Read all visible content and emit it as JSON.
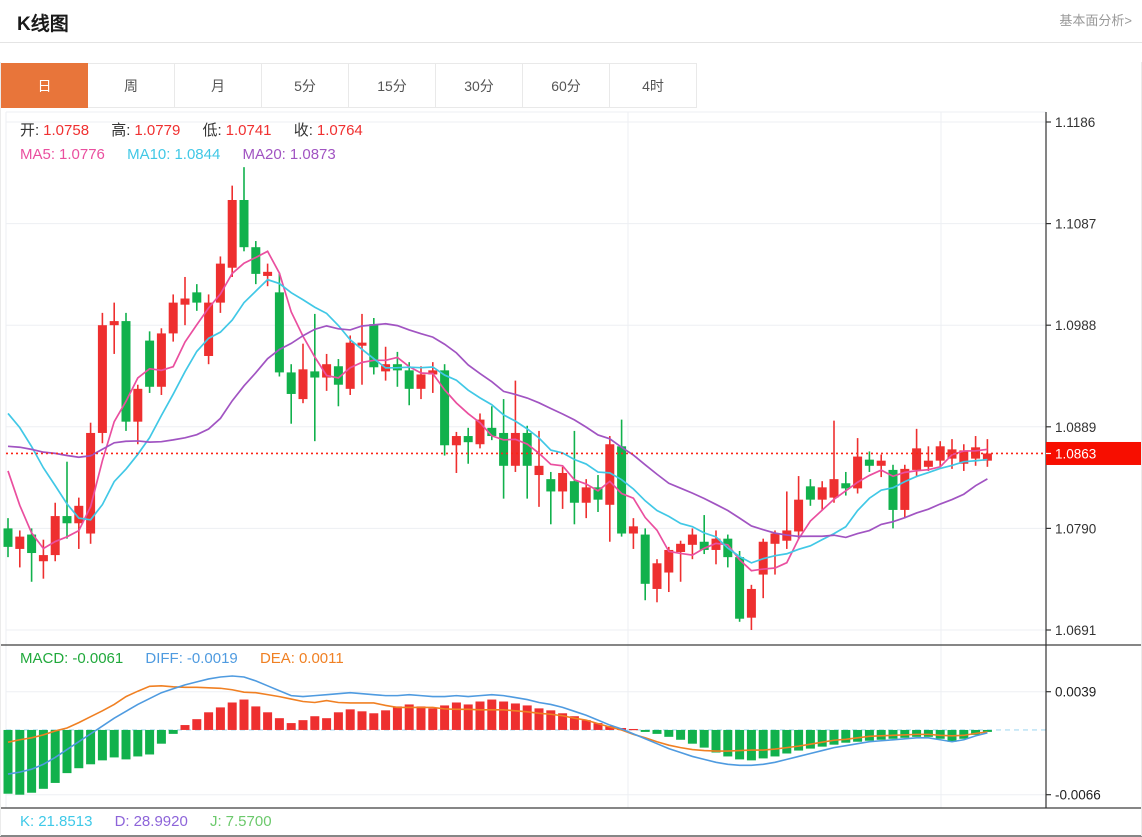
{
  "header": {
    "title": "K线图",
    "link": "基本面分析>"
  },
  "tabs": {
    "items": [
      "日",
      "周",
      "月",
      "5分",
      "15分",
      "30分",
      "60分",
      "4时"
    ],
    "active_index": 0
  },
  "legend": {
    "ohlc": {
      "open_l": "开:",
      "open_v": "1.0758",
      "high_l": "高:",
      "high_v": "1.0779",
      "low_l": "低:",
      "low_v": "1.0741",
      "close_l": "收:",
      "close_v": "1.0764"
    },
    "ma": {
      "ma5_l": "MA5:",
      "ma5_v": "1.0776",
      "ma10_l": "MA10:",
      "ma10_v": "1.0844",
      "ma20_l": "MA20:",
      "ma20_v": "1.0873"
    },
    "macd": {
      "macd_l": "MACD:",
      "macd_v": "-0.0061",
      "diff_l": "DIFF:",
      "diff_v": "-0.0019",
      "dea_l": "DEA:",
      "dea_v": "0.0011"
    },
    "kdj": {
      "k_l": "K:",
      "k_v": "21.8513",
      "d_l": "D:",
      "d_v": "28.9920",
      "j_l": "J:",
      "j_v": "7.5700"
    }
  },
  "chart_data": {
    "type": "candlestick",
    "panels": [
      "price",
      "macd"
    ],
    "y_axis_price": {
      "ticks": [
        1.1186,
        1.1087,
        1.0988,
        1.0889,
        1.079,
        1.0691
      ]
    },
    "y_axis_macd": {
      "ticks": [
        0.0039,
        -0.0066
      ]
    },
    "last_price": 1.0863,
    "candles": [
      [
        1.079,
        1.08,
        1.0762,
        1.0772
      ],
      [
        1.077,
        1.0788,
        1.0752,
        1.0782
      ],
      [
        1.0784,
        1.079,
        1.0738,
        1.0766
      ],
      [
        1.0758,
        1.0779,
        1.0741,
        1.0764
      ],
      [
        1.0764,
        1.0815,
        1.0758,
        1.0802
      ],
      [
        1.0802,
        1.0855,
        1.078,
        1.0795
      ],
      [
        1.0795,
        1.082,
        1.077,
        1.0812
      ],
      [
        1.0785,
        1.0893,
        1.0775,
        1.0883
      ],
      [
        1.0883,
        1.1,
        1.0873,
        1.0988
      ],
      [
        1.0988,
        1.101,
        1.096,
        1.0992
      ],
      [
        1.0992,
        1.1,
        1.0885,
        1.0894
      ],
      [
        1.0894,
        1.093,
        1.0872,
        1.0926
      ],
      [
        1.0973,
        1.0982,
        1.0922,
        1.0928
      ],
      [
        1.0928,
        1.0985,
        1.092,
        1.098
      ],
      [
        1.098,
        1.1018,
        1.0972,
        1.101
      ],
      [
        1.1008,
        1.1035,
        1.0988,
        1.1014
      ],
      [
        1.102,
        1.1028,
        1.1002,
        1.101
      ],
      [
        1.0958,
        1.1018,
        1.095,
        1.101
      ],
      [
        1.101,
        1.1055,
        1.1,
        1.1048
      ],
      [
        1.1044,
        1.1124,
        1.1035,
        1.111
      ],
      [
        1.111,
        1.1142,
        1.106,
        1.1064
      ],
      [
        1.1064,
        1.107,
        1.1028,
        1.1038
      ],
      [
        1.1036,
        1.1048,
        1.1026,
        1.104
      ],
      [
        1.102,
        1.1039,
        1.0938,
        1.0942
      ],
      [
        1.0942,
        1.095,
        1.0892,
        1.0921
      ],
      [
        1.0916,
        1.097,
        1.0912,
        1.0945
      ],
      [
        1.0943,
        1.0999,
        1.0875,
        1.0937
      ],
      [
        1.0937,
        1.096,
        1.0924,
        1.095
      ],
      [
        1.0948,
        1.0955,
        1.0909,
        1.093
      ],
      [
        1.0926,
        1.0978,
        1.092,
        1.0971
      ],
      [
        1.0968,
        1.0999,
        1.093,
        1.0971
      ],
      [
        1.0989,
        1.0995,
        1.094,
        1.0947
      ],
      [
        1.0943,
        1.0967,
        1.0934,
        1.095
      ],
      [
        1.095,
        1.0962,
        1.0928,
        1.0944
      ],
      [
        1.0944,
        1.0952,
        1.091,
        1.0926
      ],
      [
        1.0926,
        1.0948,
        1.0916,
        1.094
      ],
      [
        1.094,
        1.0952,
        1.0922,
        1.0944
      ],
      [
        1.0944,
        1.095,
        1.0861,
        1.0871
      ],
      [
        1.0871,
        1.0884,
        1.0844,
        1.088
      ],
      [
        1.088,
        1.0888,
        1.0853,
        1.0874
      ],
      [
        1.0872,
        1.0902,
        1.0868,
        1.0896
      ],
      [
        1.0888,
        1.0909,
        1.0876,
        1.088
      ],
      [
        1.0883,
        1.0916,
        1.0819,
        1.0851
      ],
      [
        1.0851,
        1.0934,
        1.0845,
        1.0883
      ],
      [
        1.0883,
        1.089,
        1.0819,
        1.0851
      ],
      [
        1.0842,
        1.0885,
        1.0811,
        1.0851
      ],
      [
        1.0838,
        1.0845,
        1.0794,
        1.0826
      ],
      [
        1.0826,
        1.085,
        1.0809,
        1.0844
      ],
      [
        1.0836,
        1.0885,
        1.0794,
        1.0815
      ],
      [
        1.0815,
        1.0838,
        1.08,
        1.083
      ],
      [
        1.083,
        1.0842,
        1.0806,
        1.0818
      ],
      [
        1.0813,
        1.088,
        1.0777,
        1.0872
      ],
      [
        1.087,
        1.0896,
        1.0782,
        1.0785
      ],
      [
        1.0785,
        1.08,
        1.077,
        1.0792
      ],
      [
        1.0784,
        1.079,
        1.072,
        1.0736
      ],
      [
        1.0731,
        1.076,
        1.0718,
        1.0756
      ],
      [
        1.0747,
        1.0772,
        1.0728,
        1.0769
      ],
      [
        1.0767,
        1.0778,
        1.0738,
        1.0775
      ],
      [
        1.0774,
        1.079,
        1.076,
        1.0784
      ],
      [
        1.0777,
        1.0803,
        1.0765,
        1.0769
      ],
      [
        1.0769,
        1.0788,
        1.0755,
        1.078
      ],
      [
        1.078,
        1.0784,
        1.0752,
        1.0762
      ],
      [
        1.0762,
        1.0768,
        1.0699,
        1.0702
      ],
      [
        1.0703,
        1.0735,
        1.0691,
        1.0731
      ],
      [
        1.0745,
        1.078,
        1.0722,
        1.0777
      ],
      [
        1.0775,
        1.0788,
        1.0745,
        1.0785
      ],
      [
        1.0778,
        1.0826,
        1.077,
        1.0788
      ],
      [
        1.0787,
        1.0841,
        1.078,
        1.0818
      ],
      [
        1.0831,
        1.0838,
        1.0812,
        1.0818
      ],
      [
        1.0818,
        1.0836,
        1.0808,
        1.083
      ],
      [
        1.082,
        1.0895,
        1.0815,
        1.0838
      ],
      [
        1.0834,
        1.0845,
        1.0822,
        1.0829
      ],
      [
        1.0829,
        1.0878,
        1.0824,
        1.086
      ],
      [
        1.0857,
        1.0865,
        1.0845,
        1.0851
      ],
      [
        1.0851,
        1.0862,
        1.084,
        1.0856
      ],
      [
        1.0847,
        1.0852,
        1.079,
        1.0808
      ],
      [
        1.0808,
        1.0852,
        1.08,
        1.0848
      ],
      [
        1.0847,
        1.0887,
        1.084,
        1.0868
      ],
      [
        1.085,
        1.087,
        1.0846,
        1.0856
      ],
      [
        1.0856,
        1.0875,
        1.085,
        1.087
      ],
      [
        1.0858,
        1.0877,
        1.0848,
        1.0867
      ],
      [
        1.0853,
        1.0872,
        1.0846,
        1.0866
      ],
      [
        1.0858,
        1.088,
        1.0851,
        1.0869
      ],
      [
        1.0856,
        1.0877,
        1.085,
        1.0863
      ]
    ],
    "ma_periods": [
      5,
      10,
      20
    ],
    "ma_warmup_closes": [
      1.08,
      1.0808,
      1.0818,
      1.0826,
      1.0836,
      1.0846,
      1.0854,
      1.0862,
      1.0866,
      1.0864,
      1.092,
      1.095,
      1.0972,
      1.0975,
      1.0973,
      1.095,
      1.09,
      1.084,
      1.0768
    ],
    "macd": {
      "diff": [
        -0.0045,
        -0.0043,
        -0.004,
        -0.0035,
        -0.0028,
        -0.002,
        -0.0012,
        -0.0004,
        0.0004,
        0.0012,
        0.0019,
        0.0026,
        0.0032,
        0.0038,
        0.0042,
        0.0046,
        0.0049,
        0.0052,
        0.0054,
        0.0055,
        0.0054,
        0.005,
        0.0045,
        0.004,
        0.0035,
        0.0034,
        0.0035,
        0.0036,
        0.0037,
        0.0038,
        0.0037,
        0.0036,
        0.0035,
        0.0035,
        0.0036,
        0.0035,
        0.0034,
        0.0034,
        0.0035,
        0.0034,
        0.0035,
        0.0036,
        0.0035,
        0.0033,
        0.0031,
        0.0028,
        0.0026,
        0.0023,
        0.0019,
        0.0015,
        0.001,
        0.0005,
        0.0001,
        -0.0004,
        -0.0009,
        -0.0014,
        -0.0019,
        -0.0023,
        -0.0027,
        -0.003,
        -0.0033,
        -0.0035,
        -0.0036,
        -0.0036,
        -0.0035,
        -0.0033,
        -0.003,
        -0.0027,
        -0.0024,
        -0.0021,
        -0.0018,
        -0.0016,
        -0.0014,
        -0.0012,
        -0.0011,
        -0.001,
        -0.0009,
        -0.0008,
        -0.0008,
        -0.001,
        -0.0012,
        -0.001,
        -0.0006,
        -0.0003
      ],
      "hist": [
        -0.0065,
        -0.0066,
        -0.0064,
        -0.006,
        -0.0054,
        -0.0044,
        -0.0039,
        -0.0035,
        -0.0031,
        -0.0028,
        -0.003,
        -0.0027,
        -0.0025,
        -0.0014,
        -0.0004,
        0.0005,
        0.0011,
        0.0018,
        0.0023,
        0.0028,
        0.0031,
        0.0024,
        0.0018,
        0.0012,
        0.0007,
        0.001,
        0.0014,
        0.0012,
        0.0018,
        0.0021,
        0.0019,
        0.0017,
        0.002,
        0.0024,
        0.0026,
        0.0024,
        0.0022,
        0.0025,
        0.0028,
        0.0026,
        0.0029,
        0.0031,
        0.0029,
        0.0027,
        0.0025,
        0.0022,
        0.002,
        0.0017,
        0.0014,
        0.001,
        0.0007,
        0.0004,
        0.0002,
        0.0001,
        -0.0002,
        -0.0004,
        -0.0007,
        -0.001,
        -0.0014,
        -0.0018,
        -0.0023,
        -0.0027,
        -0.003,
        -0.0031,
        -0.0029,
        -0.0027,
        -0.0024,
        -0.0021,
        -0.0019,
        -0.0017,
        -0.0015,
        -0.0013,
        -0.0012,
        -0.0011,
        -0.001,
        -0.0009,
        -0.0008,
        -0.0007,
        -0.0007,
        -0.0009,
        -0.0012,
        -0.0009,
        -0.0005,
        -0.0002
      ]
    },
    "colors": {
      "up": "#ee2f2f",
      "down": "#11b14c",
      "ma5": "#ea4f9f",
      "ma10": "#41c8e6",
      "ma20": "#a154c2",
      "diff": "#4f9be0",
      "dea": "#f08023",
      "zero_line": "#a6d9f2",
      "price_line": "#fb2416",
      "price_tag_bg": "#f70e00",
      "price_tag_text": "#ffffff",
      "grid": "#edeff3",
      "axis": "#333333",
      "separator": "#3f3f3f",
      "accent": "#e8753a"
    }
  }
}
